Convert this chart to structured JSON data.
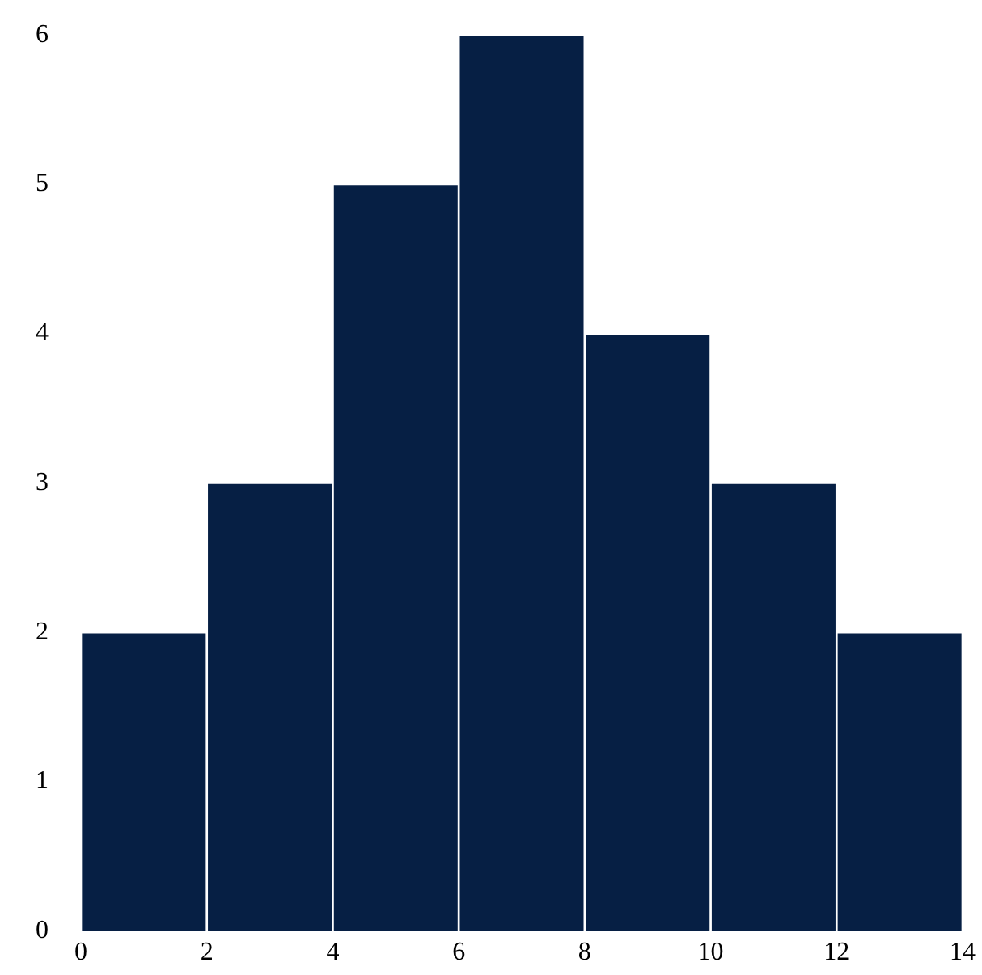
{
  "chart_data": {
    "type": "histogram",
    "bins": [
      0,
      2,
      4,
      6,
      8,
      10,
      12,
      14
    ],
    "values": [
      2,
      3,
      5,
      6,
      4,
      3,
      2
    ],
    "color": "#061f44",
    "xlim": [
      0,
      14
    ],
    "xticks": [
      0,
      2,
      4,
      6,
      8,
      10,
      12,
      14
    ],
    "ylim": [
      0,
      6
    ],
    "yticks": [
      0,
      1,
      2,
      3,
      4,
      5,
      6
    ],
    "grid": false,
    "legend": false
  }
}
